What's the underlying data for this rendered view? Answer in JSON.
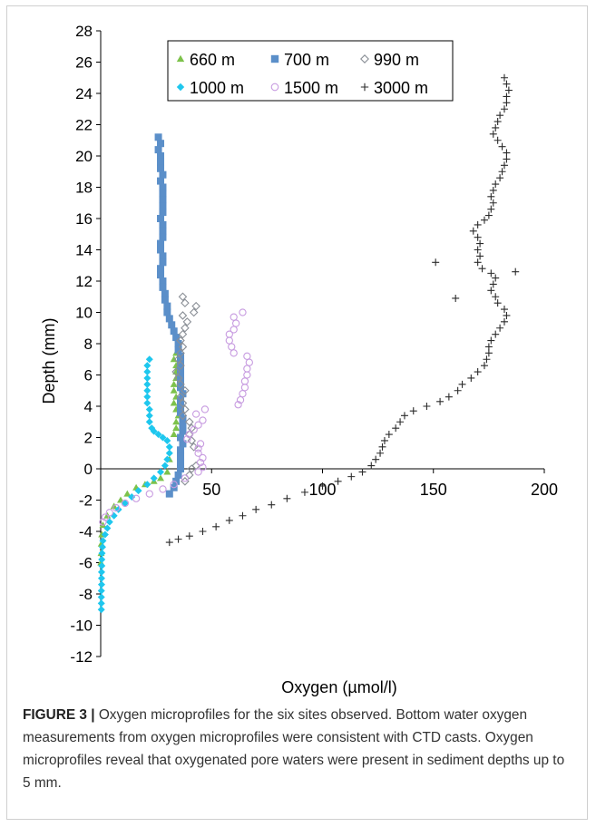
{
  "chart_data": {
    "type": "scatter",
    "xlabel": "Oxygen (µmol/l)",
    "ylabel": "Depth (mm)",
    "xlim": [
      0,
      200
    ],
    "ylim": [
      -12,
      28
    ],
    "x_ticks": [
      "50",
      "100",
      "150",
      "200"
    ],
    "y_ticks": [
      "-12",
      "-10",
      "-8",
      "-6",
      "-4",
      "-2",
      "0",
      "2",
      "4",
      "6",
      "8",
      "10",
      "12",
      "14",
      "16",
      "18",
      "20",
      "22",
      "24",
      "26",
      "28"
    ],
    "x_axis_crosses_at_y": 0,
    "grid": false,
    "legend_placement": "top-center",
    "series": [
      {
        "name": "660 m",
        "marker": "triangle",
        "color": "#7dc24b",
        "points": [
          [
            34,
            7.4
          ],
          [
            33,
            7.0
          ],
          [
            34,
            6.6
          ],
          [
            34,
            6.2
          ],
          [
            34,
            5.8
          ],
          [
            33,
            5.4
          ],
          [
            33,
            5.0
          ],
          [
            34,
            4.6
          ],
          [
            33,
            4.2
          ],
          [
            34,
            3.8
          ],
          [
            35,
            3.4
          ],
          [
            34,
            3.0
          ],
          [
            34,
            2.6
          ],
          [
            33,
            2.2
          ],
          [
            31,
            0.6
          ],
          [
            30,
            -0.2
          ],
          [
            27,
            -0.6
          ],
          [
            24,
            -0.8
          ],
          [
            20,
            -1.0
          ],
          [
            16,
            -1.2
          ],
          [
            12,
            -1.6
          ],
          [
            9,
            -2.0
          ],
          [
            6,
            -2.4
          ],
          [
            3,
            -3.0
          ],
          [
            1,
            -3.6
          ],
          [
            0.5,
            -4.2
          ],
          [
            0.3,
            -4.8
          ],
          [
            0.2,
            -5.4
          ],
          [
            0.1,
            -6.0
          ]
        ]
      },
      {
        "name": "700 m",
        "marker": "square",
        "color": "#5b8fc9",
        "points": [
          [
            26,
            21.2
          ],
          [
            27,
            20.8
          ],
          [
            26,
            20.4
          ],
          [
            27,
            20.0
          ],
          [
            27,
            19.6
          ],
          [
            27,
            19.2
          ],
          [
            28,
            18.8
          ],
          [
            27,
            18.4
          ],
          [
            28,
            18.0
          ],
          [
            28,
            17.6
          ],
          [
            28,
            17.2
          ],
          [
            28,
            16.8
          ],
          [
            28,
            16.4
          ],
          [
            27,
            16.0
          ],
          [
            28,
            15.6
          ],
          [
            28,
            15.2
          ],
          [
            28,
            14.8
          ],
          [
            27,
            14.4
          ],
          [
            27,
            14.0
          ],
          [
            28,
            13.6
          ],
          [
            28,
            13.2
          ],
          [
            27,
            12.8
          ],
          [
            27,
            12.4
          ],
          [
            28,
            12.0
          ],
          [
            28,
            11.6
          ],
          [
            29,
            11.2
          ],
          [
            29,
            10.8
          ],
          [
            30,
            10.4
          ],
          [
            30,
            10.0
          ],
          [
            31,
            9.6
          ],
          [
            32,
            9.2
          ],
          [
            33,
            8.8
          ],
          [
            34,
            8.4
          ],
          [
            35,
            8.0
          ],
          [
            35,
            7.6
          ],
          [
            36,
            7.2
          ],
          [
            36,
            6.8
          ],
          [
            36,
            6.4
          ],
          [
            36,
            6.0
          ],
          [
            36,
            5.6
          ],
          [
            36,
            5.2
          ],
          [
            37,
            4.8
          ],
          [
            36,
            4.4
          ],
          [
            36,
            4.0
          ],
          [
            36,
            3.6
          ],
          [
            37,
            3.2
          ],
          [
            37,
            2.8
          ],
          [
            37,
            2.4
          ],
          [
            36,
            2.0
          ],
          [
            37,
            1.6
          ],
          [
            36,
            1.2
          ],
          [
            36,
            0.8
          ],
          [
            36,
            0.4
          ],
          [
            36,
            0.0
          ],
          [
            35,
            -0.4
          ],
          [
            34,
            -0.8
          ],
          [
            33,
            -1.2
          ],
          [
            31,
            -1.6
          ]
        ]
      },
      {
        "name": "990 m",
        "marker": "diamond-open",
        "color": "#8a8f96",
        "points": [
          [
            37,
            11.0
          ],
          [
            38,
            10.6
          ],
          [
            43,
            10.4
          ],
          [
            42,
            10.0
          ],
          [
            37,
            9.8
          ],
          [
            39,
            9.4
          ],
          [
            38,
            9.0
          ],
          [
            37,
            8.6
          ],
          [
            36,
            8.2
          ],
          [
            37,
            7.8
          ],
          [
            36,
            7.4
          ],
          [
            35,
            7.0
          ],
          [
            36,
            6.6
          ],
          [
            34,
            6.2
          ],
          [
            35,
            5.8
          ],
          [
            36,
            5.4
          ],
          [
            38,
            5.0
          ],
          [
            36,
            4.6
          ],
          [
            37,
            4.2
          ],
          [
            38,
            3.8
          ],
          [
            37,
            3.4
          ],
          [
            40,
            3.0
          ],
          [
            41,
            2.6
          ],
          [
            40,
            2.2
          ],
          [
            41,
            1.8
          ],
          [
            42,
            1.4
          ],
          [
            43,
            0.2
          ],
          [
            41,
            0.0
          ],
          [
            40,
            -0.4
          ],
          [
            38,
            -0.8
          ]
        ]
      },
      {
        "name": "1000 m",
        "marker": "diamond",
        "color": "#1ec7ee",
        "points": [
          [
            22,
            7.0
          ],
          [
            21,
            6.6
          ],
          [
            21,
            6.2
          ],
          [
            21,
            5.8
          ],
          [
            21,
            5.4
          ],
          [
            21,
            5.0
          ],
          [
            21,
            4.6
          ],
          [
            21,
            4.2
          ],
          [
            22,
            3.8
          ],
          [
            22,
            3.4
          ],
          [
            22,
            3.0
          ],
          [
            23,
            2.6
          ],
          [
            24,
            2.4
          ],
          [
            26,
            2.2
          ],
          [
            28,
            2.0
          ],
          [
            30,
            1.8
          ],
          [
            31,
            1.4
          ],
          [
            31,
            1.0
          ],
          [
            30,
            0.6
          ],
          [
            29,
            0.2
          ],
          [
            27,
            -0.2
          ],
          [
            24,
            -0.6
          ],
          [
            21,
            -1.0
          ],
          [
            17,
            -1.4
          ],
          [
            14,
            -1.8
          ],
          [
            11,
            -2.2
          ],
          [
            8,
            -2.6
          ],
          [
            6,
            -3.0
          ],
          [
            4,
            -3.4
          ],
          [
            3,
            -3.8
          ],
          [
            2,
            -4.2
          ],
          [
            1,
            -4.6
          ],
          [
            0.8,
            -5.0
          ],
          [
            0.6,
            -5.4
          ],
          [
            0.5,
            -5.8
          ],
          [
            0.5,
            -6.2
          ],
          [
            0.4,
            -6.6
          ],
          [
            0.4,
            -7.0
          ],
          [
            0.4,
            -7.4
          ],
          [
            0.3,
            -7.8
          ],
          [
            0.3,
            -8.2
          ],
          [
            0.3,
            -8.6
          ],
          [
            0.3,
            -9.0
          ]
        ]
      },
      {
        "name": "1500 m",
        "marker": "circle-open",
        "color": "#c79be0",
        "points": [
          [
            64,
            10.0
          ],
          [
            60,
            9.7
          ],
          [
            61,
            9.3
          ],
          [
            60,
            8.9
          ],
          [
            58,
            8.6
          ],
          [
            58,
            8.2
          ],
          [
            59,
            7.8
          ],
          [
            60,
            7.4
          ],
          [
            66,
            7.2
          ],
          [
            67,
            6.8
          ],
          [
            66,
            6.4
          ],
          [
            66,
            6.0
          ],
          [
            65,
            5.6
          ],
          [
            65,
            5.2
          ],
          [
            64,
            4.8
          ],
          [
            63,
            4.4
          ],
          [
            62,
            4.1
          ],
          [
            47,
            3.8
          ],
          [
            43,
            3.5
          ],
          [
            46,
            3.1
          ],
          [
            44,
            2.8
          ],
          [
            42,
            2.5
          ],
          [
            40,
            2.2
          ],
          [
            39,
            1.9
          ],
          [
            45,
            1.6
          ],
          [
            44,
            1.3
          ],
          [
            44,
            1.0
          ],
          [
            46,
            0.7
          ],
          [
            45,
            0.4
          ],
          [
            46,
            0.1
          ],
          [
            44,
            -0.2
          ],
          [
            38,
            -0.6
          ],
          [
            33,
            -1.0
          ],
          [
            28,
            -1.3
          ],
          [
            22,
            -1.6
          ],
          [
            16,
            -1.9
          ],
          [
            11,
            -2.2
          ],
          [
            7,
            -2.5
          ],
          [
            4,
            -2.8
          ],
          [
            2,
            -3.1
          ],
          [
            1,
            -3.4
          ]
        ]
      },
      {
        "name": "3000 m",
        "marker": "plus",
        "color": "#2b2b2b",
        "points": [
          [
            182,
            25.0
          ],
          [
            183,
            24.6
          ],
          [
            184,
            24.2
          ],
          [
            183,
            23.8
          ],
          [
            183,
            23.4
          ],
          [
            182,
            23.0
          ],
          [
            180,
            22.6
          ],
          [
            179,
            22.2
          ],
          [
            178,
            21.8
          ],
          [
            177,
            21.4
          ],
          [
            179,
            21.0
          ],
          [
            181,
            20.6
          ],
          [
            183,
            20.2
          ],
          [
            183,
            19.8
          ],
          [
            182,
            19.4
          ],
          [
            181,
            19.0
          ],
          [
            180,
            18.6
          ],
          [
            178,
            18.2
          ],
          [
            177,
            17.8
          ],
          [
            176,
            17.4
          ],
          [
            177,
            17.0
          ],
          [
            176,
            16.6
          ],
          [
            175,
            16.2
          ],
          [
            173,
            15.9
          ],
          [
            170,
            15.6
          ],
          [
            168,
            15.2
          ],
          [
            170,
            14.8
          ],
          [
            171,
            14.4
          ],
          [
            170,
            14.0
          ],
          [
            171,
            13.6
          ],
          [
            170,
            13.2
          ],
          [
            172,
            12.8
          ],
          [
            176,
            12.5
          ],
          [
            178,
            12.2
          ],
          [
            177,
            11.8
          ],
          [
            176,
            11.4
          ],
          [
            178,
            11.0
          ],
          [
            179,
            10.6
          ],
          [
            182,
            10.2
          ],
          [
            183,
            9.8
          ],
          [
            182,
            9.4
          ],
          [
            180,
            9.0
          ],
          [
            178,
            8.6
          ],
          [
            176,
            8.2
          ],
          [
            175,
            7.8
          ],
          [
            175,
            7.4
          ],
          [
            174,
            7.0
          ],
          [
            173,
            6.6
          ],
          [
            170,
            6.2
          ],
          [
            167,
            5.8
          ],
          [
            163,
            5.4
          ],
          [
            161,
            5.0
          ],
          [
            157,
            4.6
          ],
          [
            153,
            4.3
          ],
          [
            147,
            4.0
          ],
          [
            141,
            3.7
          ],
          [
            137,
            3.4
          ],
          [
            135,
            3.0
          ],
          [
            133,
            2.6
          ],
          [
            130,
            2.2
          ],
          [
            128,
            1.8
          ],
          [
            127,
            1.4
          ],
          [
            126,
            1.0
          ],
          [
            124,
            0.6
          ],
          [
            122,
            0.2
          ],
          [
            118,
            -0.2
          ],
          [
            113,
            -0.5
          ],
          [
            107,
            -0.8
          ],
          [
            100,
            -1.1
          ],
          [
            92,
            -1.5
          ],
          [
            84,
            -1.9
          ],
          [
            77,
            -2.3
          ],
          [
            70,
            -2.6
          ],
          [
            64,
            -3.0
          ],
          [
            58,
            -3.3
          ],
          [
            52,
            -3.7
          ],
          [
            46,
            -4.0
          ],
          [
            40,
            -4.3
          ],
          [
            35,
            -4.5
          ],
          [
            31,
            -4.7
          ],
          [
            187,
            12.6
          ],
          [
            160,
            10.9
          ],
          [
            151,
            13.2
          ]
        ]
      }
    ]
  },
  "caption": {
    "label": "FIGURE 3 |",
    "text": " Oxygen microprofiles for the six sites observed. Bottom water oxygen measurements from oxygen microprofiles were consistent with CTD casts. Oxygen microprofiles reveal that oxygenated pore waters were present in sediment depths up to 5 mm."
  }
}
